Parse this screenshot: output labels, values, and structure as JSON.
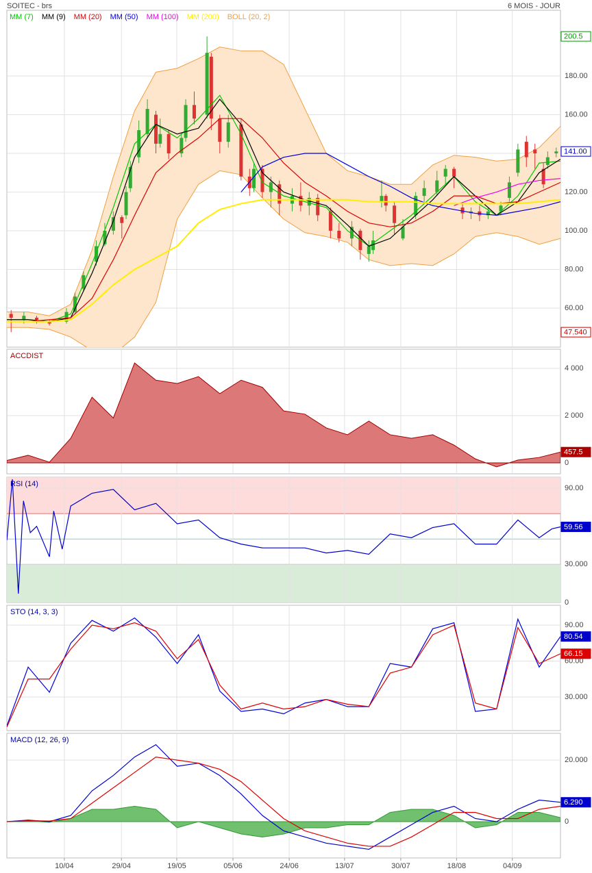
{
  "chart_data": [
    {
      "type": "candlestick",
      "title": "SOITEC - brs",
      "subtitle": "6 MOIS - JOUR",
      "xlim": [
        0,
        130
      ],
      "ylim": [
        39.8,
        214
      ],
      "grid": true,
      "yticks": [
        {
          "value": 60,
          "label": "60.00"
        },
        {
          "value": 80,
          "label": "80.00"
        },
        {
          "value": 100,
          "label": "100.00"
        },
        {
          "value": 120,
          "label": "120.00"
        },
        {
          "value": 140,
          "label": "140.00"
        },
        {
          "value": 160,
          "label": "160.00"
        },
        {
          "value": 180,
          "label": "180.00"
        }
      ],
      "candles": {
        "up_color": "#33aa33",
        "down_color": "#dd3333",
        "x": [
          1,
          4,
          7,
          10,
          14,
          16,
          18,
          21,
          23,
          25,
          27,
          28,
          29,
          31,
          33,
          35,
          36,
          38,
          41,
          42,
          44,
          47,
          48,
          50,
          52,
          55,
          57,
          58,
          60,
          62,
          64,
          67,
          69,
          71,
          73,
          76,
          78,
          81,
          83,
          85,
          86,
          88,
          89,
          91,
          93,
          96,
          98,
          101,
          103,
          105,
          107,
          109,
          111,
          113,
          116,
          118,
          120,
          122,
          124,
          126,
          127,
          129
        ],
        "open": [
          57,
          54,
          55,
          53,
          53,
          58,
          70,
          84,
          93,
          100,
          107,
          108,
          122,
          138,
          150,
          160,
          145,
          150,
          140,
          148,
          165,
          160,
          190,
          158,
          146,
          155,
          128,
          122,
          132,
          120,
          124,
          114,
          118,
          113,
          117,
          110,
          100,
          96,
          100,
          88,
          90,
          115,
          118,
          113,
          96,
          108,
          118,
          120,
          128,
          132,
          112,
          109,
          110,
          108,
          110,
          117,
          130,
          146,
          142,
          132,
          134,
          140
        ],
        "high": [
          59,
          58,
          56,
          54,
          60,
          68,
          79,
          95,
          104,
          110,
          108,
          123,
          136,
          157,
          168,
          162,
          158,
          152,
          150,
          168,
          172,
          200.5,
          192,
          160,
          160,
          158,
          132,
          135,
          134,
          128,
          126,
          122,
          125,
          120,
          119,
          112,
          104,
          105,
          101,
          95,
          100,
          126,
          119,
          115,
          106,
          120,
          126,
          131,
          134,
          133,
          114,
          112,
          113,
          112,
          115,
          128,
          145,
          149,
          145,
          135,
          141,
          143
        ],
        "low": [
          47.54,
          52,
          52,
          51,
          52,
          57,
          69,
          82,
          92,
          98,
          96,
          106,
          120,
          135,
          148,
          140,
          143,
          137,
          138,
          146,
          155,
          158,
          152,
          140,
          143,
          126,
          118,
          120,
          117,
          112,
          108,
          110,
          110,
          108,
          105,
          96,
          94,
          92,
          85,
          84,
          88,
          112,
          110,
          98,
          95,
          106,
          115,
          118,
          124,
          122,
          106,
          106,
          105,
          106,
          108,
          115,
          128,
          133,
          132,
          122,
          132,
          138
        ],
        "close": [
          55,
          56,
          54,
          52,
          58,
          66,
          77,
          92,
          100,
          107,
          104,
          120,
          133,
          152,
          163,
          145,
          150,
          140,
          148,
          165,
          158,
          192,
          158,
          146,
          156,
          128,
          122,
          132,
          120,
          125,
          114,
          118,
          113,
          117,
          108,
          100,
          96,
          102,
          90,
          92,
          95,
          118,
          113,
          104,
          102,
          118,
          122,
          126,
          132,
          128,
          109,
          110,
          108,
          110,
          113,
          125,
          142,
          138,
          140,
          124,
          138,
          141
        ]
      },
      "x": [
        0,
        5,
        10,
        15,
        20,
        25,
        30,
        35,
        40,
        45,
        50,
        55,
        60,
        65,
        70,
        75,
        80,
        85,
        90,
        95,
        100,
        105,
        110,
        115,
        120,
        125,
        130
      ],
      "series": [
        {
          "name": "BOLL (20, 2)",
          "color": "#f0a040",
          "fill": "#fde6cc",
          "style": "band",
          "upper": [
            58,
            58,
            56,
            62,
            90,
            128,
            162,
            182,
            184,
            189,
            195,
            193,
            193,
            186,
            163,
            140,
            131,
            128,
            124,
            124,
            134,
            139,
            138,
            136,
            137,
            143,
            154
          ],
          "lower": [
            50,
            50,
            49,
            45,
            38,
            36,
            45,
            63,
            106,
            124,
            131,
            129,
            117,
            106,
            99,
            97,
            94,
            85,
            82,
            83,
            82,
            88,
            97,
            99,
            97,
            93,
            96
          ]
        },
        {
          "name": "MM (7)",
          "color": "#00c800",
          "values": [
            54,
            54,
            53,
            57,
            83,
            112,
            145,
            155,
            148,
            158,
            170,
            150,
            125,
            118,
            115,
            112,
            100,
            92,
            100,
            108,
            118,
            128,
            115,
            108,
            118,
            135,
            136
          ]
        },
        {
          "name": "MM (9)",
          "color": "#000000",
          "values": [
            54,
            54,
            53,
            55,
            78,
            105,
            138,
            155,
            150,
            153,
            168,
            155,
            130,
            120,
            116,
            113,
            103,
            92,
            96,
            106,
            116,
            128,
            118,
            108,
            115,
            130,
            137
          ]
        },
        {
          "name": "MM (20)",
          "color": "#dd0000",
          "values": [
            53,
            53,
            54,
            55,
            65,
            85,
            108,
            130,
            140,
            148,
            158,
            158,
            148,
            135,
            125,
            118,
            110,
            104,
            102,
            104,
            110,
            118,
            118,
            114,
            115,
            120,
            125
          ]
        },
        {
          "name": "MM (50)",
          "color": "#0000dd",
          "values": [
            null,
            null,
            null,
            null,
            null,
            null,
            null,
            null,
            null,
            null,
            null,
            120,
            133,
            138,
            140,
            140,
            134,
            128,
            123,
            117,
            113,
            111,
            109,
            108,
            110,
            112,
            115
          ]
        },
        {
          "name": "MM (100)",
          "color": "#ee00ee",
          "values": [
            null,
            null,
            null,
            null,
            null,
            null,
            null,
            null,
            null,
            null,
            null,
            null,
            null,
            null,
            null,
            null,
            null,
            null,
            null,
            null,
            null,
            113,
            117,
            120,
            124,
            126,
            127
          ]
        },
        {
          "name": "MM (200)",
          "color": "#ffee00",
          "width": 2,
          "values": [
            53,
            53,
            53,
            54,
            62,
            72,
            80,
            86,
            92,
            104,
            111,
            114,
            116,
            116,
            116,
            116,
            116,
            115,
            115,
            115,
            114,
            114,
            114,
            114,
            114,
            115,
            116
          ]
        }
      ],
      "markers": [
        {
          "value": 200.5,
          "label": "200.5",
          "color": "#009900",
          "filled": false
        },
        {
          "value": 141,
          "label": "141.00",
          "color": "#0000cc",
          "filled": false
        },
        {
          "value": 47.54,
          "label": "47.540",
          "color": "#cc0000",
          "filled": false
        }
      ]
    },
    {
      "type": "area",
      "title": "ACCDIST",
      "title_color": "#a00000",
      "xlim": [
        0,
        130
      ],
      "ylim": [
        -464,
        4812
      ],
      "grid": true,
      "yticks": [
        0,
        {
          "value": 2000,
          "label": "2 000"
        },
        {
          "value": 4000,
          "label": "4 000"
        }
      ],
      "x": [
        0,
        5,
        10,
        15,
        20,
        25,
        30,
        35,
        40,
        45,
        50,
        55,
        60,
        65,
        70,
        75,
        80,
        85,
        90,
        95,
        100,
        105,
        110,
        115,
        120,
        125,
        130
      ],
      "series": [
        {
          "color": "#a00000",
          "fill": "#dc7878",
          "style": "area",
          "values": [
            100,
            320,
            30,
            1040,
            2780,
            1900,
            4230,
            3500,
            3360,
            3650,
            2930,
            3500,
            3200,
            2200,
            2060,
            1480,
            1190,
            1770,
            1190,
            1040,
            1190,
            750,
            170,
            -170,
            120,
            230,
            457.5
          ]
        }
      ],
      "markers": [
        {
          "value": 457.5,
          "label": "457.5",
          "color": "#b00000",
          "filled": true
        }
      ]
    },
    {
      "type": "line",
      "title": "RSI (14)",
      "title_color": "#0000a0",
      "xlim": [
        0,
        130
      ],
      "ylim": [
        0,
        98.6
      ],
      "grid": true,
      "yticks": [
        0,
        {
          "value": 30,
          "label": "30.000"
        },
        {
          "value": 90,
          "label": "90.00"
        }
      ],
      "zones": [
        {
          "from": 70,
          "color": "#ffdcdc",
          "edge": "#e07070"
        },
        {
          "to": 30,
          "color": "#d8ecd8",
          "edge": "#2d7a2d"
        }
      ],
      "midline": {
        "value": 50,
        "color": "#80d0d0"
      },
      "x": [
        0,
        1.3,
        2.7,
        3.9,
        5.5,
        7,
        10,
        11,
        13,
        15,
        20,
        25,
        30,
        35,
        40,
        45,
        50,
        55,
        60,
        65,
        70,
        75,
        80,
        85,
        90,
        95,
        100,
        105,
        110,
        115,
        120,
        125,
        128,
        130
      ],
      "series": [
        {
          "color": "#0000cc",
          "values": [
            49,
            97,
            7,
            80,
            55,
            60,
            36,
            72,
            42,
            76,
            86,
            89,
            73,
            78,
            62,
            65,
            51,
            46,
            43,
            43,
            43,
            39,
            41,
            38,
            54,
            51,
            59,
            62,
            46,
            46,
            65,
            51,
            58,
            59.56
          ]
        }
      ],
      "markers": [
        {
          "value": 59.56,
          "label": "59.56",
          "color": "#0000cc",
          "filled": true
        }
      ]
    },
    {
      "type": "line",
      "title": "STO (14, 3, 3)",
      "title_color": "#0000a0",
      "xlim": [
        0,
        130
      ],
      "ylim": [
        2,
        106.6
      ],
      "grid": true,
      "yticks": [
        {
          "value": 30,
          "label": "30.000"
        },
        {
          "value": 60,
          "label": "60.00"
        },
        {
          "value": 90,
          "label": "90.00"
        }
      ],
      "x": [
        0,
        5,
        10,
        15,
        20,
        25,
        30,
        35,
        40,
        45,
        50,
        55,
        60,
        65,
        70,
        75,
        80,
        85,
        90,
        95,
        100,
        105,
        110,
        115,
        120,
        125,
        130
      ],
      "series": [
        {
          "color": "#0000dd",
          "values": [
            6,
            55,
            34,
            75,
            94,
            85,
            96,
            80,
            58,
            82,
            35,
            18,
            20,
            16,
            25,
            28,
            22,
            22,
            58,
            55,
            87,
            92,
            18,
            20,
            95,
            55,
            80.54
          ]
        },
        {
          "color": "#dd0000",
          "values": [
            5,
            45,
            45,
            70,
            90,
            87,
            92,
            85,
            62,
            78,
            40,
            20,
            25,
            20,
            22,
            28,
            24,
            22,
            50,
            55,
            82,
            90,
            25,
            20,
            88,
            58,
            66.15
          ]
        }
      ],
      "markers": [
        {
          "value": 80.54,
          "label": "80.54",
          "color": "#0000cc",
          "filled": true
        },
        {
          "value": 66.15,
          "label": "66.15",
          "color": "#dd0000",
          "filled": true
        }
      ]
    },
    {
      "type": "line",
      "title": "MACD (12, 26, 9)",
      "title_color": "#0000a0",
      "xlim": [
        0,
        130
      ],
      "ylim": [
        -11.8,
        28.7
      ],
      "grid": true,
      "yticks": [
        0,
        {
          "value": 20,
          "label": "20.000"
        }
      ],
      "xticks": [
        {
          "value": 13.5,
          "label": "10/04"
        },
        {
          "value": 26.9,
          "label": "29/04"
        },
        {
          "value": 39.9,
          "label": "19/05"
        },
        {
          "value": 53.1,
          "label": "05/06"
        },
        {
          "value": 66.3,
          "label": "24/06"
        },
        {
          "value": 79.3,
          "label": "13/07"
        },
        {
          "value": 92.5,
          "label": "30/07"
        },
        {
          "value": 105.6,
          "label": "18/08"
        },
        {
          "value": 118.7,
          "label": "04/09"
        }
      ],
      "x": [
        0,
        5,
        10,
        15,
        20,
        25,
        30,
        35,
        40,
        45,
        50,
        55,
        60,
        65,
        70,
        75,
        80,
        85,
        90,
        95,
        100,
        105,
        110,
        115,
        120,
        125,
        130
      ],
      "series": [
        {
          "color": "#339933",
          "fill": "#70c070",
          "style": "area",
          "values": [
            0,
            0.2,
            -0.2,
            1,
            4,
            4,
            5,
            4,
            -2,
            0,
            -2,
            -4,
            -5,
            -4,
            -2,
            -2,
            -1,
            -1,
            3,
            4,
            4,
            2,
            -2,
            -1,
            3,
            3,
            1.3
          ]
        },
        {
          "color": "#0000cc",
          "values": [
            0,
            0.5,
            0,
            2,
            10,
            15,
            21,
            25,
            18,
            19,
            15,
            9,
            2,
            -3,
            -5,
            -7,
            -8,
            -9,
            -5,
            -1,
            3,
            5,
            1,
            0,
            4,
            7,
            6.29
          ]
        },
        {
          "color": "#dd0000",
          "values": [
            0,
            0.3,
            0.2,
            1,
            6,
            11,
            16,
            21,
            20,
            19,
            17,
            13,
            7,
            1,
            -3,
            -5,
            -7,
            -8,
            -8,
            -5,
            -1,
            3,
            3,
            1,
            1,
            4,
            5
          ]
        }
      ],
      "markers": [
        {
          "value": 6.29,
          "label": "6.290",
          "color": "#0000cc",
          "filled": true
        }
      ]
    }
  ]
}
